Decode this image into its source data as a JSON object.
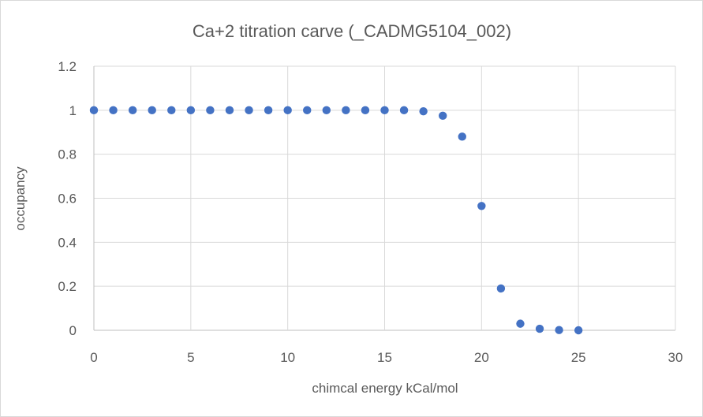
{
  "chart_data": {
    "type": "scatter",
    "title": "Ca+2 titration carve (_CADMG5104_002)",
    "xlabel": "chimcal energy kCal/mol",
    "ylabel": "occupancy",
    "xlim": [
      0,
      30
    ],
    "ylim": [
      0,
      1.2
    ],
    "x_ticks": [
      "0",
      "5",
      "10",
      "15",
      "20",
      "25",
      "30"
    ],
    "y_ticks": [
      "0",
      "0.2",
      "0.4",
      "0.6",
      "0.8",
      "1",
      "1.2"
    ],
    "grid": "horizontal and vertical",
    "marker_color": "#4472c4",
    "series": [
      {
        "x": [
          0,
          1,
          2,
          3,
          4,
          5,
          6,
          7,
          8,
          9,
          10,
          11,
          12,
          13,
          14,
          15,
          16,
          17,
          18,
          19,
          20,
          21,
          22,
          23,
          24,
          25
        ],
        "y": [
          1,
          1,
          1,
          1,
          1,
          1,
          1,
          1,
          1,
          1,
          1,
          1,
          1,
          1,
          1,
          1,
          1,
          0.995,
          0.975,
          0.88,
          0.565,
          0.19,
          0.03,
          0.007,
          0.001,
          0
        ]
      }
    ]
  }
}
